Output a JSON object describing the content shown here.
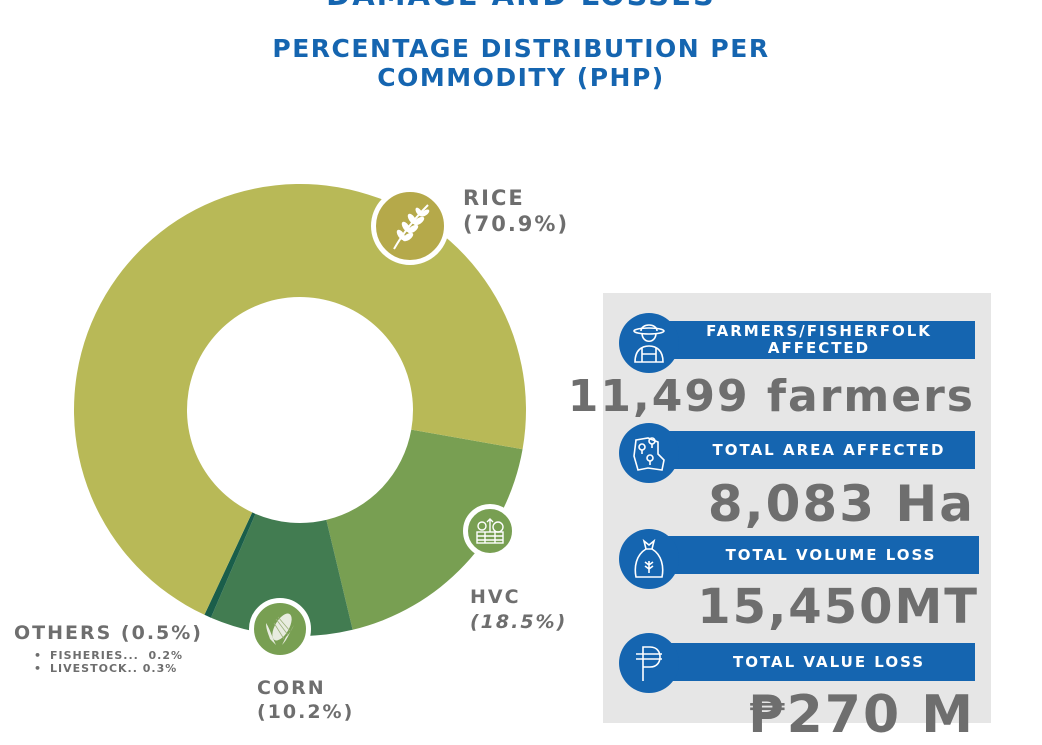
{
  "header": {
    "title": "DAMAGE AND LOSSES",
    "subtitle_line1": "PERCENTAGE DISTRIBUTION PER",
    "subtitle_line2": "COMMODITY (PHP)"
  },
  "chart_data": {
    "type": "pie",
    "subtype": "donut",
    "title": "PERCENTAGE DISTRIBUTION PER COMMODITY (PHP)",
    "unit": "%",
    "slices": [
      {
        "name": "HVC",
        "value": 18.5,
        "color": "#789f52",
        "label": "HVC",
        "pct_label": "(18.5%)",
        "icon": "vegetable-crate-icon"
      },
      {
        "name": "Corn",
        "value": 10.2,
        "color": "#427c51",
        "label": "CORN",
        "pct_label": "(10.2%)",
        "icon": "corn-icon"
      },
      {
        "name": "Others",
        "value": 0.5,
        "color": "#1a5e4a",
        "label": "OTHERS (0.5%)",
        "pct_label": "",
        "icon": ""
      },
      {
        "name": "Rice",
        "value": 70.9,
        "color": "#b8b957",
        "label": "RICE",
        "pct_label": "(70.9%)",
        "icon": "rice-grain-icon"
      }
    ],
    "others_breakdown": [
      {
        "label": "FISHERIES...",
        "value": "0.2%"
      },
      {
        "label": "LIVESTOCK..",
        "value": "0.3%"
      }
    ]
  },
  "stats": [
    {
      "title": "FARMERS/FISHERFOLK AFFECTED",
      "value": "11,499 farmers",
      "icon": "farmer-icon"
    },
    {
      "title": "TOTAL AREA AFFECTED",
      "value": "8,083 Ha",
      "icon": "map-pin-area-icon"
    },
    {
      "title": "TOTAL VOLUME LOSS",
      "value": "15,450MT",
      "icon": "grain-sack-icon"
    },
    {
      "title": "TOTAL VALUE LOSS",
      "value": "₱270 M",
      "icon": "peso-icon"
    }
  ],
  "colors": {
    "accent_blue": "#1565b0",
    "text_gray": "#6e6e6e",
    "panel_bg": "#e6e6e6"
  }
}
